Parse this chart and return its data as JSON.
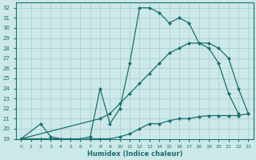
{
  "xlabel": "Humidex (Indice chaleur)",
  "bg_color": "#cce8e8",
  "line_color": "#1a7070",
  "grid_color": "#a8cccc",
  "xlim": [
    -0.5,
    23.5
  ],
  "ylim": [
    19,
    32.5
  ],
  "xticks": [
    0,
    1,
    2,
    3,
    4,
    5,
    6,
    7,
    8,
    9,
    10,
    11,
    12,
    13,
    14,
    15,
    16,
    17,
    18,
    19,
    20,
    21,
    22,
    23
  ],
  "yticks": [
    19,
    20,
    21,
    22,
    23,
    24,
    25,
    26,
    27,
    28,
    29,
    30,
    31,
    32
  ],
  "curve1_x": [
    0,
    2,
    3,
    4,
    5,
    6,
    7,
    8,
    9,
    10,
    11,
    12,
    13,
    14,
    15,
    16,
    17,
    18,
    19,
    20,
    21,
    22
  ],
  "curve1_y": [
    19,
    20.5,
    19.2,
    19,
    19,
    19,
    19.2,
    24,
    20.5,
    22,
    26.5,
    32,
    32,
    31.5,
    30.5,
    31,
    30.5,
    28.5,
    28,
    26.5,
    23.5,
    21.5
  ],
  "curve2_x": [
    0,
    2,
    3,
    4,
    5,
    6,
    7,
    8,
    9,
    10,
    11,
    12,
    13,
    14,
    15,
    16,
    17,
    18,
    19,
    20,
    21,
    22,
    23
  ],
  "curve2_y": [
    19,
    19,
    19,
    19,
    18.9,
    18.9,
    19,
    19,
    19,
    19.2,
    19.5,
    20,
    20.5,
    20.5,
    20.8,
    21,
    21,
    21.2,
    21.3,
    21.3,
    21.3,
    21.3,
    21.5
  ],
  "curve3_x": [
    0,
    8,
    9,
    10,
    11,
    12,
    13,
    14,
    15,
    16,
    17,
    18,
    19,
    20,
    21,
    22,
    23
  ],
  "curve3_y": [
    19,
    21,
    21.5,
    22.5,
    23.5,
    24.5,
    25.5,
    26.5,
    27.5,
    28,
    28.5,
    28.5,
    28.5,
    28,
    27,
    24,
    21.5
  ]
}
